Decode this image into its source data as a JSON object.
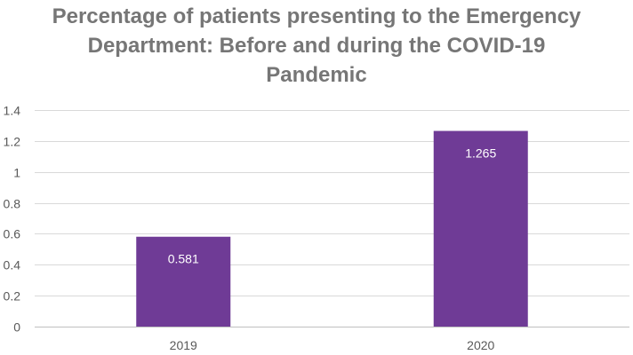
{
  "chart_data": {
    "type": "bar",
    "title_lines": [
      "Percentage of patients presenting to the Emergency",
      "Department: Before and during the COVID-19",
      "Pandemic"
    ],
    "categories": [
      "2019",
      "2020"
    ],
    "values": [
      0.581,
      1.265
    ],
    "data_labels": [
      "0.581",
      "1.265"
    ],
    "xlabel": "",
    "ylabel": "",
    "ylim": [
      0,
      1.4
    ],
    "y_ticks": [
      "0",
      "0.2",
      "0.4",
      "0.6",
      "0.8",
      "1",
      "1.2",
      "1.4"
    ],
    "y_tick_values": [
      0,
      0.2,
      0.4,
      0.6,
      0.8,
      1.0,
      1.2,
      1.4
    ],
    "grid": true,
    "legend": "none",
    "bar_color": "#6f3b96",
    "grid_color": "#d9d9d9",
    "axis_color": "#bfbfbf"
  }
}
